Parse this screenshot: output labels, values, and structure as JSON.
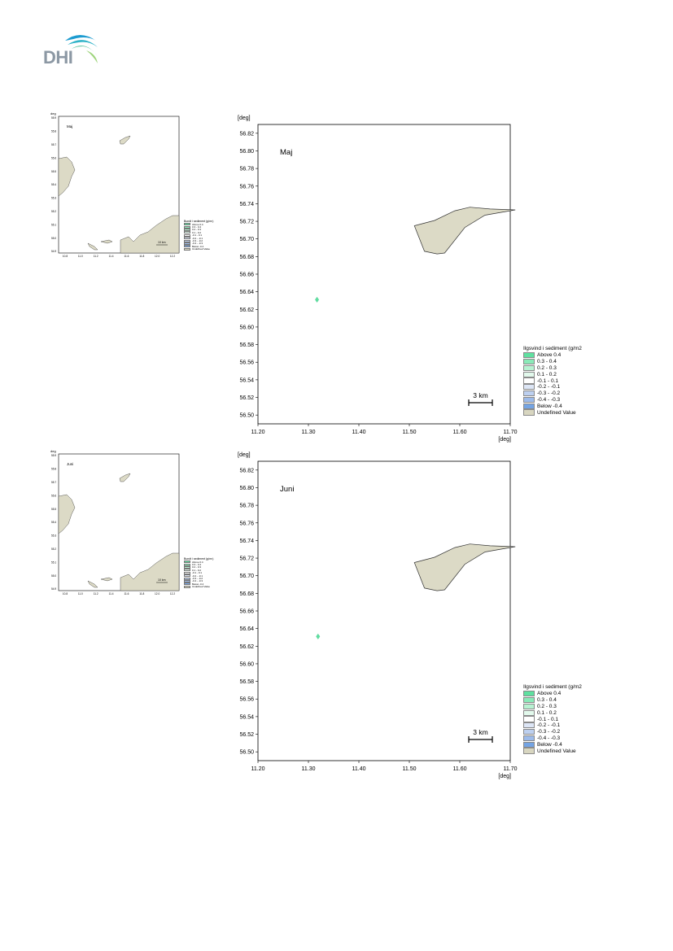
{
  "logo": {
    "text": "DHI"
  },
  "thumbnails": [
    {
      "label": "Maj",
      "unit": "deg",
      "y_ticks": [
        "55.9",
        "55.8",
        "55.7",
        "55.6",
        "55.5",
        "55.4",
        "55.3",
        "55.2",
        "55.1",
        "55.0",
        "54.9"
      ],
      "x_ticks": [
        "10.8",
        "11.0",
        "11.2",
        "11.4",
        "11.6",
        "11.8",
        "12.0",
        "12.2"
      ],
      "scalebar": "10 km",
      "legend_title": "Bundt i sediment (g/m²)",
      "legend": [
        "Above 0.4",
        "0.3 - 0.4",
        "0.2 - 0.3",
        "0.1 - 0.2",
        "-0.1 - 0.1",
        "-0.2 - -0.1",
        "-0.3 - -0.2",
        "-0.4 - -0.3",
        "Below -0.4",
        "Undefined Value"
      ]
    },
    {
      "label": "Juni",
      "unit": "deg",
      "y_ticks": [
        "55.9",
        "55.8",
        "55.7",
        "55.6",
        "55.5",
        "55.4",
        "55.3",
        "55.2",
        "55.1",
        "55.0",
        "54.9"
      ],
      "x_ticks": [
        "10.8",
        "11.0",
        "11.2",
        "11.4",
        "11.6",
        "11.8",
        "12.0",
        "12.2"
      ],
      "scalebar": "10 km",
      "legend_title": "Bundt i sediment (g/m²)",
      "legend": [
        "Above 0.4",
        "0.3 - 0.4",
        "0.2 - 0.3",
        "0.1 - 0.2",
        "-0.1 - 0.1",
        "-0.2 - -0.1",
        "-0.3 - -0.2",
        "-0.4 - -0.3",
        "Below -0.4",
        "Undefined Value"
      ]
    }
  ],
  "maps": [
    {
      "label": "Maj",
      "unit_y": "[deg]",
      "unit_x": "[deg]",
      "x_range": [
        11.2,
        11.7
      ],
      "y_range": [
        56.49,
        56.83
      ],
      "x_ticks": [
        "11.20",
        "11.30",
        "11.40",
        "11.50",
        "11.60",
        "11.70"
      ],
      "y_ticks": [
        "56.82",
        "56.80",
        "56.78",
        "56.76",
        "56.74",
        "56.72",
        "56.70",
        "56.68",
        "56.66",
        "56.64",
        "56.62",
        "56.60",
        "56.58",
        "56.56",
        "56.54",
        "56.52",
        "56.50"
      ],
      "scalebar": "3 km",
      "spot": {
        "lon": 11.317,
        "lat": 56.631
      },
      "island": [
        [
          11.51,
          56.715
        ],
        [
          11.55,
          56.721
        ],
        [
          11.59,
          56.732
        ],
        [
          11.62,
          56.736
        ],
        [
          11.66,
          56.734
        ],
        [
          11.71,
          56.733
        ],
        [
          11.65,
          56.727
        ],
        [
          11.61,
          56.713
        ],
        [
          11.57,
          56.684
        ],
        [
          11.555,
          56.683
        ],
        [
          11.53,
          56.686
        ]
      ]
    },
    {
      "label": "Juni",
      "unit_y": "[deg]",
      "unit_x": "[deg]",
      "x_range": [
        11.2,
        11.7
      ],
      "y_range": [
        56.49,
        56.83
      ],
      "x_ticks": [
        "11.20",
        "11.30",
        "11.40",
        "11.50",
        "11.60",
        "11.70"
      ],
      "y_ticks": [
        "56.82",
        "56.80",
        "56.78",
        "56.76",
        "56.74",
        "56.72",
        "56.70",
        "56.68",
        "56.66",
        "56.64",
        "56.62",
        "56.60",
        "56.58",
        "56.56",
        "56.54",
        "56.52",
        "56.50"
      ],
      "scalebar": "3 km",
      "spot": {
        "lon": 11.319,
        "lat": 56.631
      },
      "island": [
        [
          11.51,
          56.715
        ],
        [
          11.55,
          56.721
        ],
        [
          11.59,
          56.732
        ],
        [
          11.62,
          56.736
        ],
        [
          11.66,
          56.734
        ],
        [
          11.71,
          56.733
        ],
        [
          11.65,
          56.727
        ],
        [
          11.61,
          56.713
        ],
        [
          11.57,
          56.684
        ],
        [
          11.555,
          56.683
        ],
        [
          11.53,
          56.686
        ]
      ]
    }
  ],
  "legend": {
    "title": "Ilgsvind i sediment (g/m2",
    "items": [
      {
        "label": "Above  0.4",
        "color": "#5fe0a0"
      },
      {
        "label": "0.3 -  0.4",
        "color": "#8aeab8"
      },
      {
        "label": "0.2 -  0.3",
        "color": "#b8f2d2"
      },
      {
        "label": "0.1 -  0.2",
        "color": "#e2f9ec"
      },
      {
        "label": "-0.1 -  0.1",
        "color": "#ffffff"
      },
      {
        "label": "-0.2 - -0.1",
        "color": "#dde6f6"
      },
      {
        "label": "-0.3 - -0.2",
        "color": "#bdd0f0"
      },
      {
        "label": "-0.4 - -0.3",
        "color": "#9dbbea"
      },
      {
        "label": "Below -0.4",
        "color": "#74a4e4"
      },
      {
        "label": "Undefined Value",
        "color": "#d8d6c0"
      }
    ]
  },
  "colors": {
    "land": "#dcdac6",
    "land_stroke": "#333333",
    "frame": "#000000"
  }
}
